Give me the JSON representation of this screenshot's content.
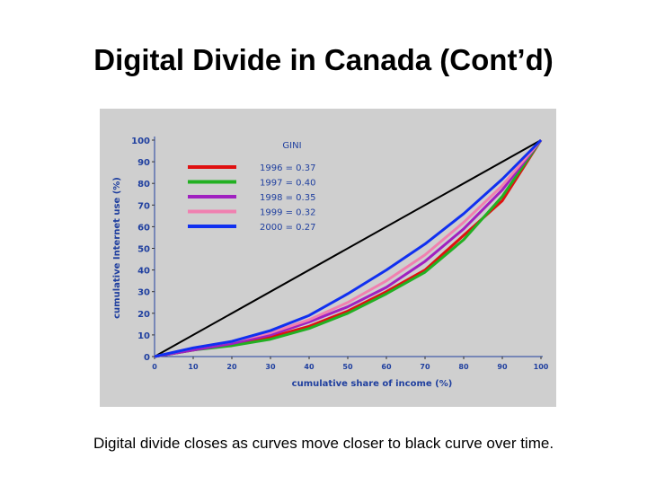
{
  "slide": {
    "title": "Digital Divide in Canada (Cont’d)",
    "caption": "Digital divide closes as curves move closer to black curve over time."
  },
  "chart_data": {
    "type": "line",
    "xlabel": "cumulative share of income (%)",
    "ylabel": "cumulative Internet use (%)",
    "xlim": [
      0,
      100
    ],
    "ylim": [
      0,
      100
    ],
    "xticks": [
      0,
      10,
      20,
      30,
      40,
      50,
      60,
      70,
      80,
      90,
      100
    ],
    "yticks": [
      0,
      10,
      20,
      30,
      40,
      50,
      60,
      70,
      80,
      90,
      100
    ],
    "legend_title": "GINI",
    "legend_position": "top-left",
    "colors": {
      "axis_text": "#1f3f9f",
      "panel_background": "#cfcfcf",
      "line_of_equality": "#000000"
    },
    "equality_line": {
      "x": [
        0,
        100
      ],
      "y": [
        0,
        100
      ]
    },
    "series": [
      {
        "name": "1996 = 0.37",
        "color": "#e01010",
        "x": [
          0,
          10,
          20,
          30,
          40,
          50,
          60,
          70,
          80,
          90,
          100
        ],
        "y": [
          0,
          3,
          6,
          9,
          14,
          21,
          30,
          40,
          56,
          72,
          100
        ]
      },
      {
        "name": "1997 = 0.40",
        "color": "#22b022",
        "x": [
          0,
          10,
          20,
          30,
          40,
          50,
          60,
          70,
          80,
          90,
          100
        ],
        "y": [
          0,
          3,
          5,
          8,
          13,
          20,
          29,
          39,
          54,
          74,
          100
        ]
      },
      {
        "name": "1998 = 0.35",
        "color": "#a020c0",
        "x": [
          0,
          10,
          20,
          30,
          40,
          50,
          60,
          70,
          80,
          90,
          100
        ],
        "y": [
          0,
          3,
          6,
          10,
          16,
          23,
          32,
          44,
          59,
          77,
          100
        ]
      },
      {
        "name": "1999 = 0.32",
        "color": "#f080b0",
        "x": [
          0,
          10,
          20,
          30,
          40,
          50,
          60,
          70,
          80,
          90,
          100
        ],
        "y": [
          0,
          4,
          7,
          11,
          17,
          25,
          35,
          47,
          62,
          79,
          100
        ]
      },
      {
        "name": "2000 = 0.27",
        "color": "#1030f0",
        "x": [
          0,
          10,
          20,
          30,
          40,
          50,
          60,
          70,
          80,
          90,
          100
        ],
        "y": [
          0,
          4,
          7,
          12,
          19,
          29,
          40,
          52,
          66,
          82,
          100
        ]
      }
    ]
  }
}
